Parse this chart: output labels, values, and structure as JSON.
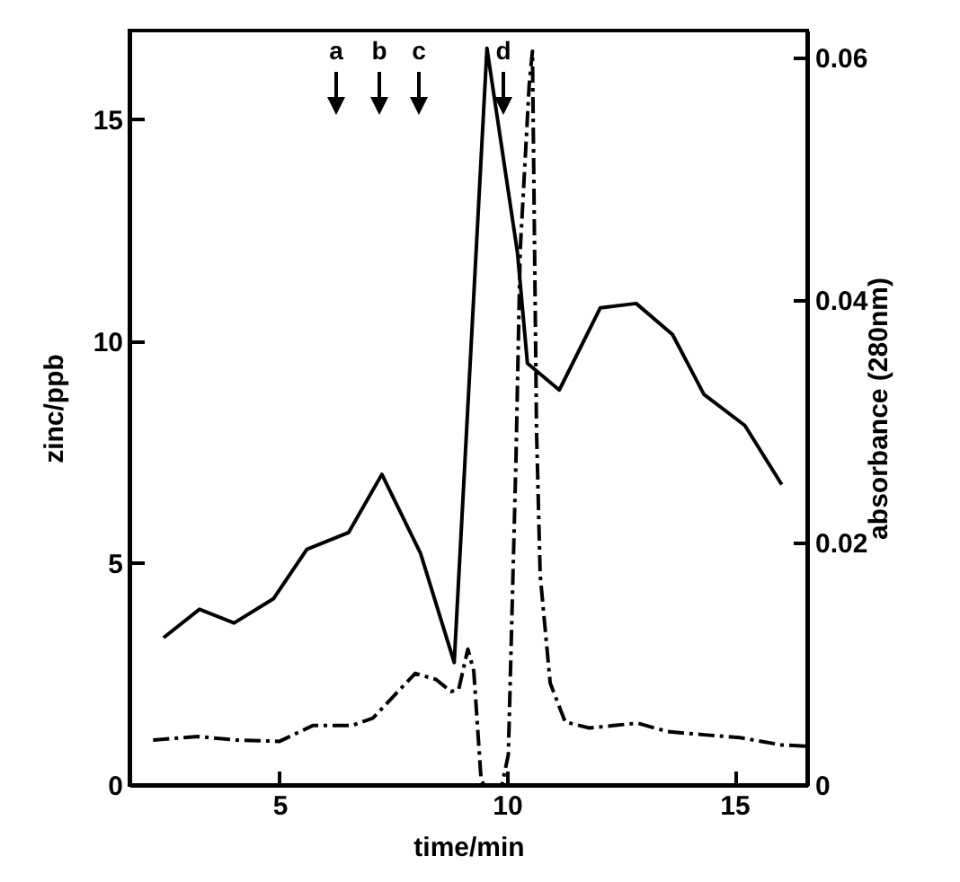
{
  "chart_data": {
    "type": "line",
    "xlabel": "time/min",
    "ylabel": "zinc/ppb",
    "y2label": "absorbance (280nm)",
    "xlim": [
      1.7,
      16.6
    ],
    "xticks": [
      5,
      10,
      15
    ],
    "ylim": [
      0,
      17
    ],
    "yticks": [
      0,
      5,
      10,
      15
    ],
    "y2lim": [
      0,
      0.0622
    ],
    "y2ticks": [
      0,
      0.02,
      0.04,
      0.06
    ],
    "grid": false,
    "marker": "none",
    "series": [
      {
        "color": "#000000",
        "line_style": "solid",
        "x": [
          2.45,
          3.24,
          4.0,
          4.87,
          5.6,
          6.52,
          7.25,
          8.1,
          8.84,
          9.56,
          10.23,
          10.45,
          11.15,
          12.05,
          12.84,
          13.64,
          14.33,
          15.23,
          16.04
        ],
        "values": [
          3.32,
          3.96,
          3.65,
          4.2,
          5.31,
          5.69,
          7.0,
          5.22,
          2.76,
          16.6,
          12.0,
          9.5,
          8.9,
          10.75,
          10.85,
          10.15,
          8.8,
          8.1,
          6.77
        ]
      },
      {
        "color": "#000000",
        "line_style": "dashed",
        "axis": "y2",
        "x": [
          2.22,
          3.21,
          4.05,
          5.0,
          5.73,
          6.59,
          7.05,
          7.98,
          8.44,
          8.77,
          8.94,
          9.14,
          9.27,
          9.43,
          9.49,
          9.89,
          10.03,
          10.2,
          10.29,
          10.49,
          10.56,
          10.65,
          10.73,
          10.95,
          11.28,
          11.81,
          12.34,
          12.87,
          13.53,
          14.46,
          15.12,
          16.04,
          16.57
        ],
        "values": [
          0.0037,
          0.004,
          0.0037,
          0.0036,
          0.0049,
          0.0049,
          0.0055,
          0.0092,
          0.0087,
          0.0077,
          0.0079,
          0.0112,
          0.0094,
          0.0005,
          0,
          0,
          0.0025,
          0.0272,
          0.044,
          0.0578,
          0.0605,
          0.0292,
          0.0173,
          0.0084,
          0.0052,
          0.0047,
          0.0049,
          0.0051,
          0.0044,
          0.0041,
          0.0039,
          0.0033,
          0.0032
        ]
      }
    ],
    "annotations": [
      "a",
      "b",
      "c",
      "d"
    ]
  }
}
